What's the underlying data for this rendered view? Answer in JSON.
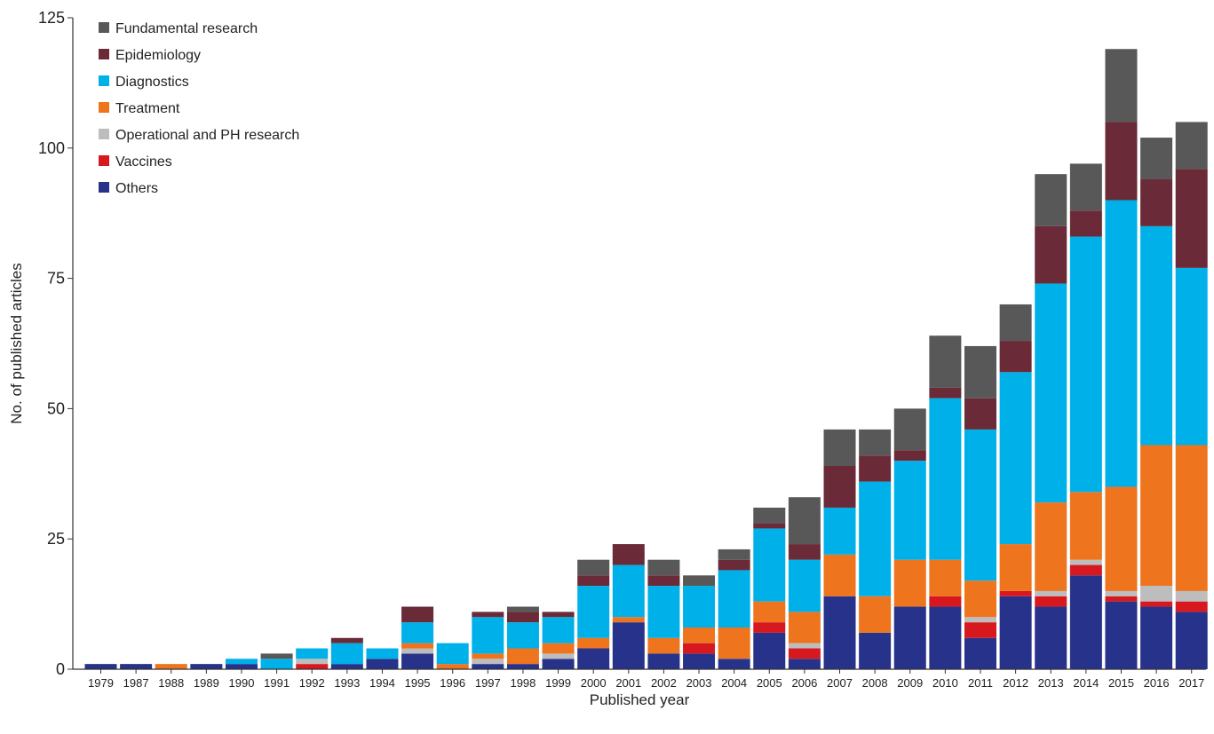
{
  "chart_data": {
    "type": "bar",
    "stacked": true,
    "title": "",
    "xlabel": "Published year",
    "ylabel": "No. of published articles",
    "ylim": [
      0,
      125
    ],
    "yticks": [
      0,
      25,
      50,
      75,
      100,
      125
    ],
    "grid": false,
    "legend_position": "top-left",
    "categories": [
      "1979",
      "1987",
      "1988",
      "1989",
      "1990",
      "1991",
      "1992",
      "1993",
      "1994",
      "1995",
      "1996",
      "1997",
      "1998",
      "1999",
      "2000",
      "2001",
      "2002",
      "2003",
      "2004",
      "2005",
      "2006",
      "2007",
      "2008",
      "2009",
      "2010",
      "2011",
      "2012",
      "2013",
      "2014",
      "2015",
      "2016",
      "2017"
    ],
    "series": [
      {
        "name": "Others",
        "color": "#27338b",
        "values": [
          1,
          1,
          0,
          1,
          1,
          0,
          0,
          1,
          2,
          3,
          0,
          1,
          1,
          2,
          4,
          9,
          3,
          3,
          2,
          7,
          2,
          14,
          7,
          12,
          12,
          6,
          14,
          12,
          18,
          13,
          12,
          11
        ]
      },
      {
        "name": "Vaccines",
        "color": "#d7191f",
        "values": [
          0,
          0,
          0,
          0,
          0,
          0,
          1,
          0,
          0,
          0,
          0,
          0,
          0,
          0,
          0,
          0,
          0,
          2,
          0,
          2,
          2,
          0,
          0,
          0,
          2,
          3,
          1,
          2,
          2,
          1,
          1,
          2
        ]
      },
      {
        "name": "Operational and PH research",
        "color": "#bdbdbd",
        "values": [
          0,
          0,
          0,
          0,
          0,
          0,
          1,
          0,
          0,
          1,
          0,
          1,
          0,
          1,
          0,
          0,
          0,
          0,
          0,
          0,
          1,
          0,
          0,
          0,
          0,
          1,
          0,
          1,
          1,
          1,
          3,
          2
        ]
      },
      {
        "name": "Treatment",
        "color": "#ee741e",
        "values": [
          0,
          0,
          1,
          0,
          0,
          0,
          0,
          0,
          0,
          1,
          1,
          1,
          3,
          2,
          2,
          1,
          3,
          3,
          6,
          4,
          6,
          8,
          7,
          9,
          7,
          7,
          9,
          17,
          13,
          20,
          27,
          28
        ]
      },
      {
        "name": "Diagnostics",
        "color": "#00b0e8",
        "values": [
          0,
          0,
          0,
          0,
          1,
          2,
          2,
          4,
          2,
          4,
          4,
          7,
          5,
          5,
          10,
          10,
          10,
          8,
          11,
          14,
          10,
          9,
          22,
          19,
          31,
          29,
          33,
          42,
          49,
          55,
          42,
          34
        ]
      },
      {
        "name": "Epidemiology",
        "color": "#6b2a37",
        "values": [
          0,
          0,
          0,
          0,
          0,
          0,
          0,
          1,
          0,
          3,
          0,
          1,
          2,
          1,
          2,
          4,
          2,
          0,
          2,
          1,
          3,
          8,
          5,
          2,
          2,
          6,
          6,
          11,
          5,
          15,
          9,
          19
        ]
      },
      {
        "name": "Fundamental research",
        "color": "#585858",
        "values": [
          0,
          0,
          0,
          0,
          0,
          1,
          0,
          0,
          0,
          0,
          0,
          0,
          1,
          0,
          3,
          0,
          3,
          2,
          2,
          3,
          9,
          7,
          5,
          8,
          10,
          10,
          7,
          10,
          9,
          14,
          8,
          9
        ]
      }
    ],
    "legend_order": [
      "Fundamental research",
      "Epidemiology",
      "Diagnostics",
      "Treatment",
      "Operational and PH research",
      "Vaccines",
      "Others"
    ]
  }
}
